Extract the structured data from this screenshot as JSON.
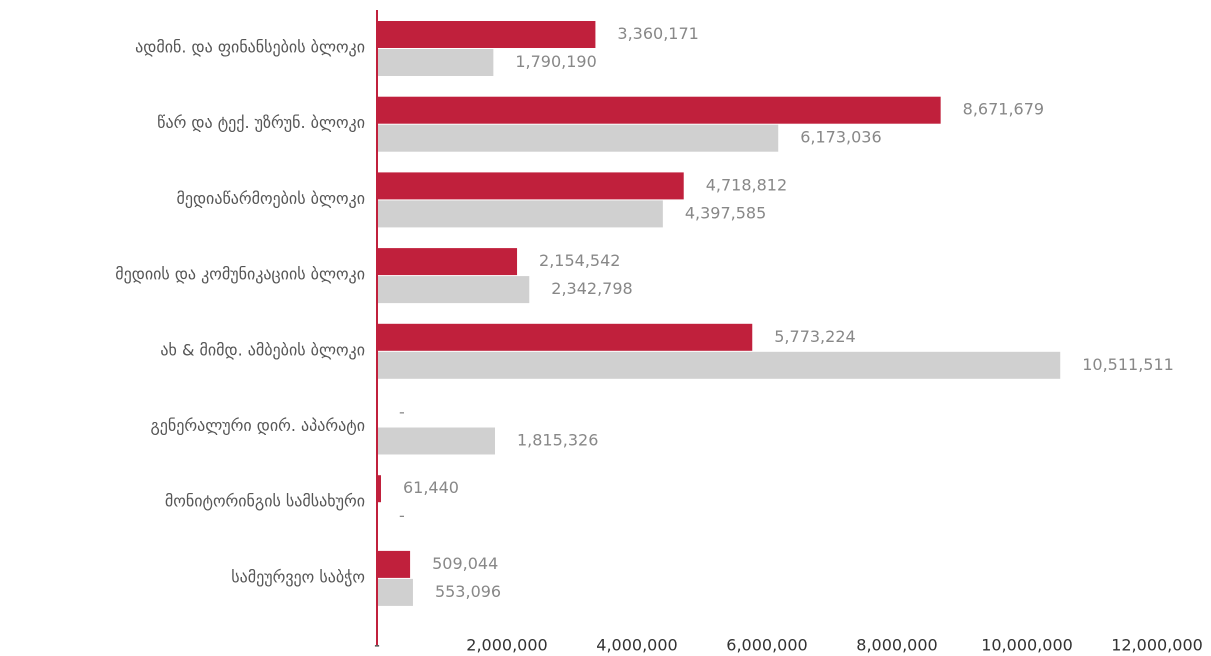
{
  "chart_data": {
    "type": "barh",
    "categories": [
      "ადმინ. და ფინანსების ბლოკი",
      "წარ და ტექ. უზრუნ. ბლოკი",
      "მედიაწარმოების ბლოკი",
      "მედიის და კომუნიკაციის ბლოკი",
      "ახ & მიმდ. ამბების ბლოკი",
      "გენერალური დირ. აპარატი",
      "მონიტორინგის სამსახური",
      "სამეურვეო საბჭო"
    ],
    "series": [
      {
        "color": "#c0203c",
        "values": [
          3360171,
          8671679,
          4718812,
          2154542,
          5773224,
          0,
          61440,
          509044
        ],
        "value_labels": [
          "3,360,171",
          "8,671,679",
          "4,718,812",
          "2,154,542",
          "5,773,224",
          "-",
          "61,440",
          "509,044"
        ]
      },
      {
        "color": "#d0d0d0",
        "values": [
          1790190,
          6173036,
          4397585,
          2342798,
          10511511,
          1815326,
          0,
          553096
        ],
        "value_labels": [
          "1,790,190",
          "6,173,036",
          "4,397,585",
          "2,342,798",
          "10,511,511",
          "1,815,326",
          "-",
          "553,096"
        ]
      }
    ],
    "xlim": [
      0,
      12000000
    ],
    "xticks": [
      {
        "value": 0,
        "label": "-"
      },
      {
        "value": 2000000,
        "label": "2,000,000"
      },
      {
        "value": 4000000,
        "label": "4,000,000"
      },
      {
        "value": 6000000,
        "label": "6,000,000"
      },
      {
        "value": 8000000,
        "label": "8,000,000"
      },
      {
        "value": 10000000,
        "label": "10,000,000"
      },
      {
        "value": 12000000,
        "label": "12,000,000"
      }
    ],
    "axis_color": "#c0203c"
  }
}
